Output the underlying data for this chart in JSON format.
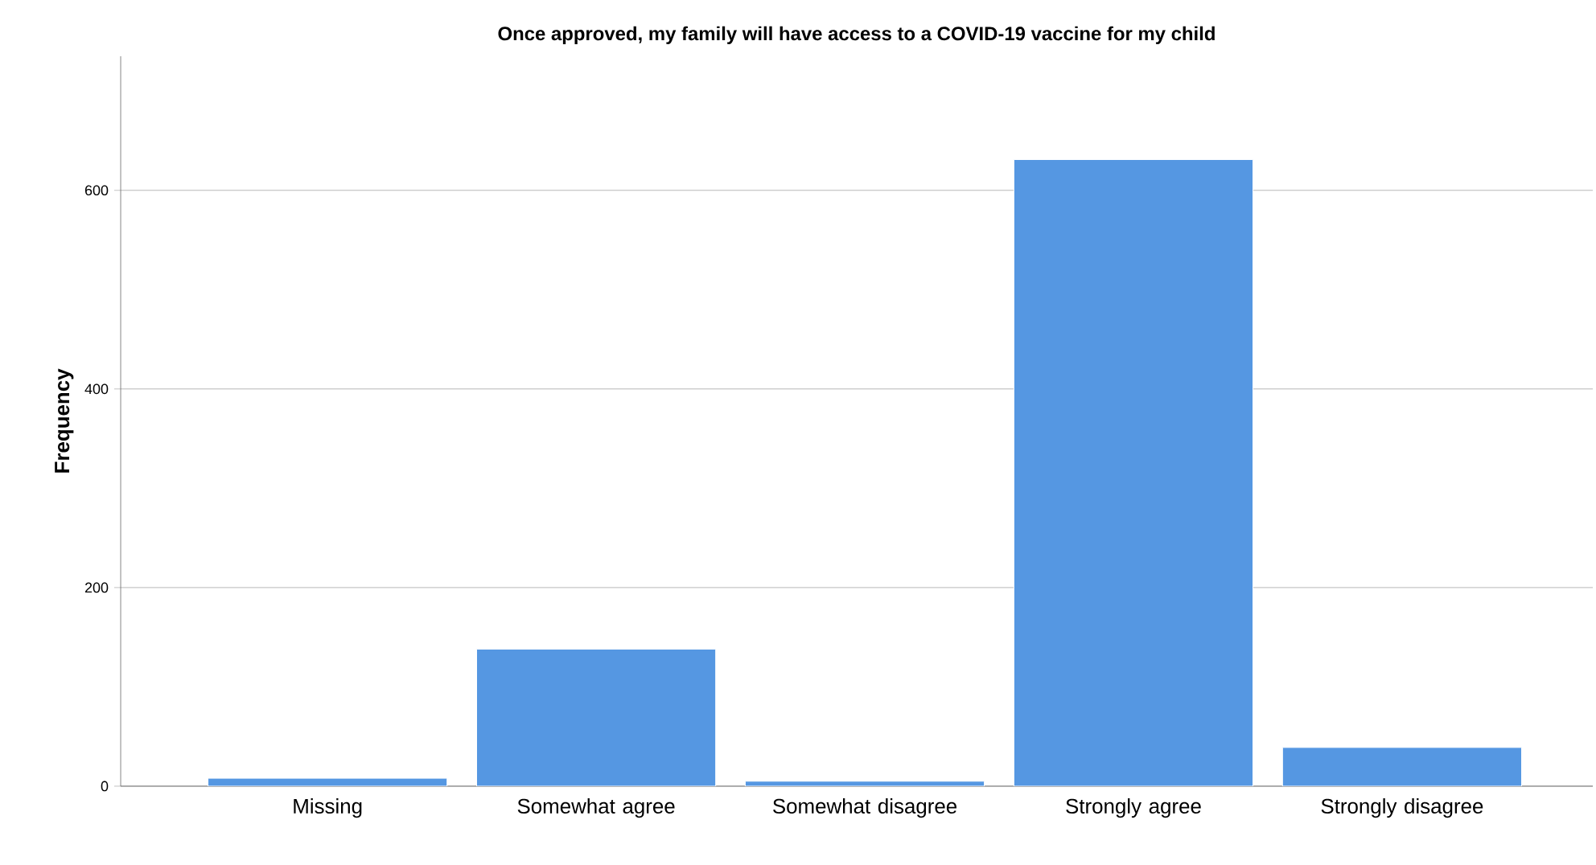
{
  "chart_data": {
    "type": "bar",
    "title": "Once approved, my family will have access to a COVID-19 vaccine for my child",
    "ylabel": "Frequency",
    "categories": [
      "Missing",
      "Somewhat agree",
      "Somewhat disagree",
      "Strongly agree",
      "Strongly disagree"
    ],
    "values": [
      8,
      138,
      5,
      631,
      39
    ],
    "color": "#5597e2",
    "ylim": [
      0,
      735
    ],
    "yticks": [
      0,
      200,
      400,
      600
    ],
    "grid": "y"
  }
}
